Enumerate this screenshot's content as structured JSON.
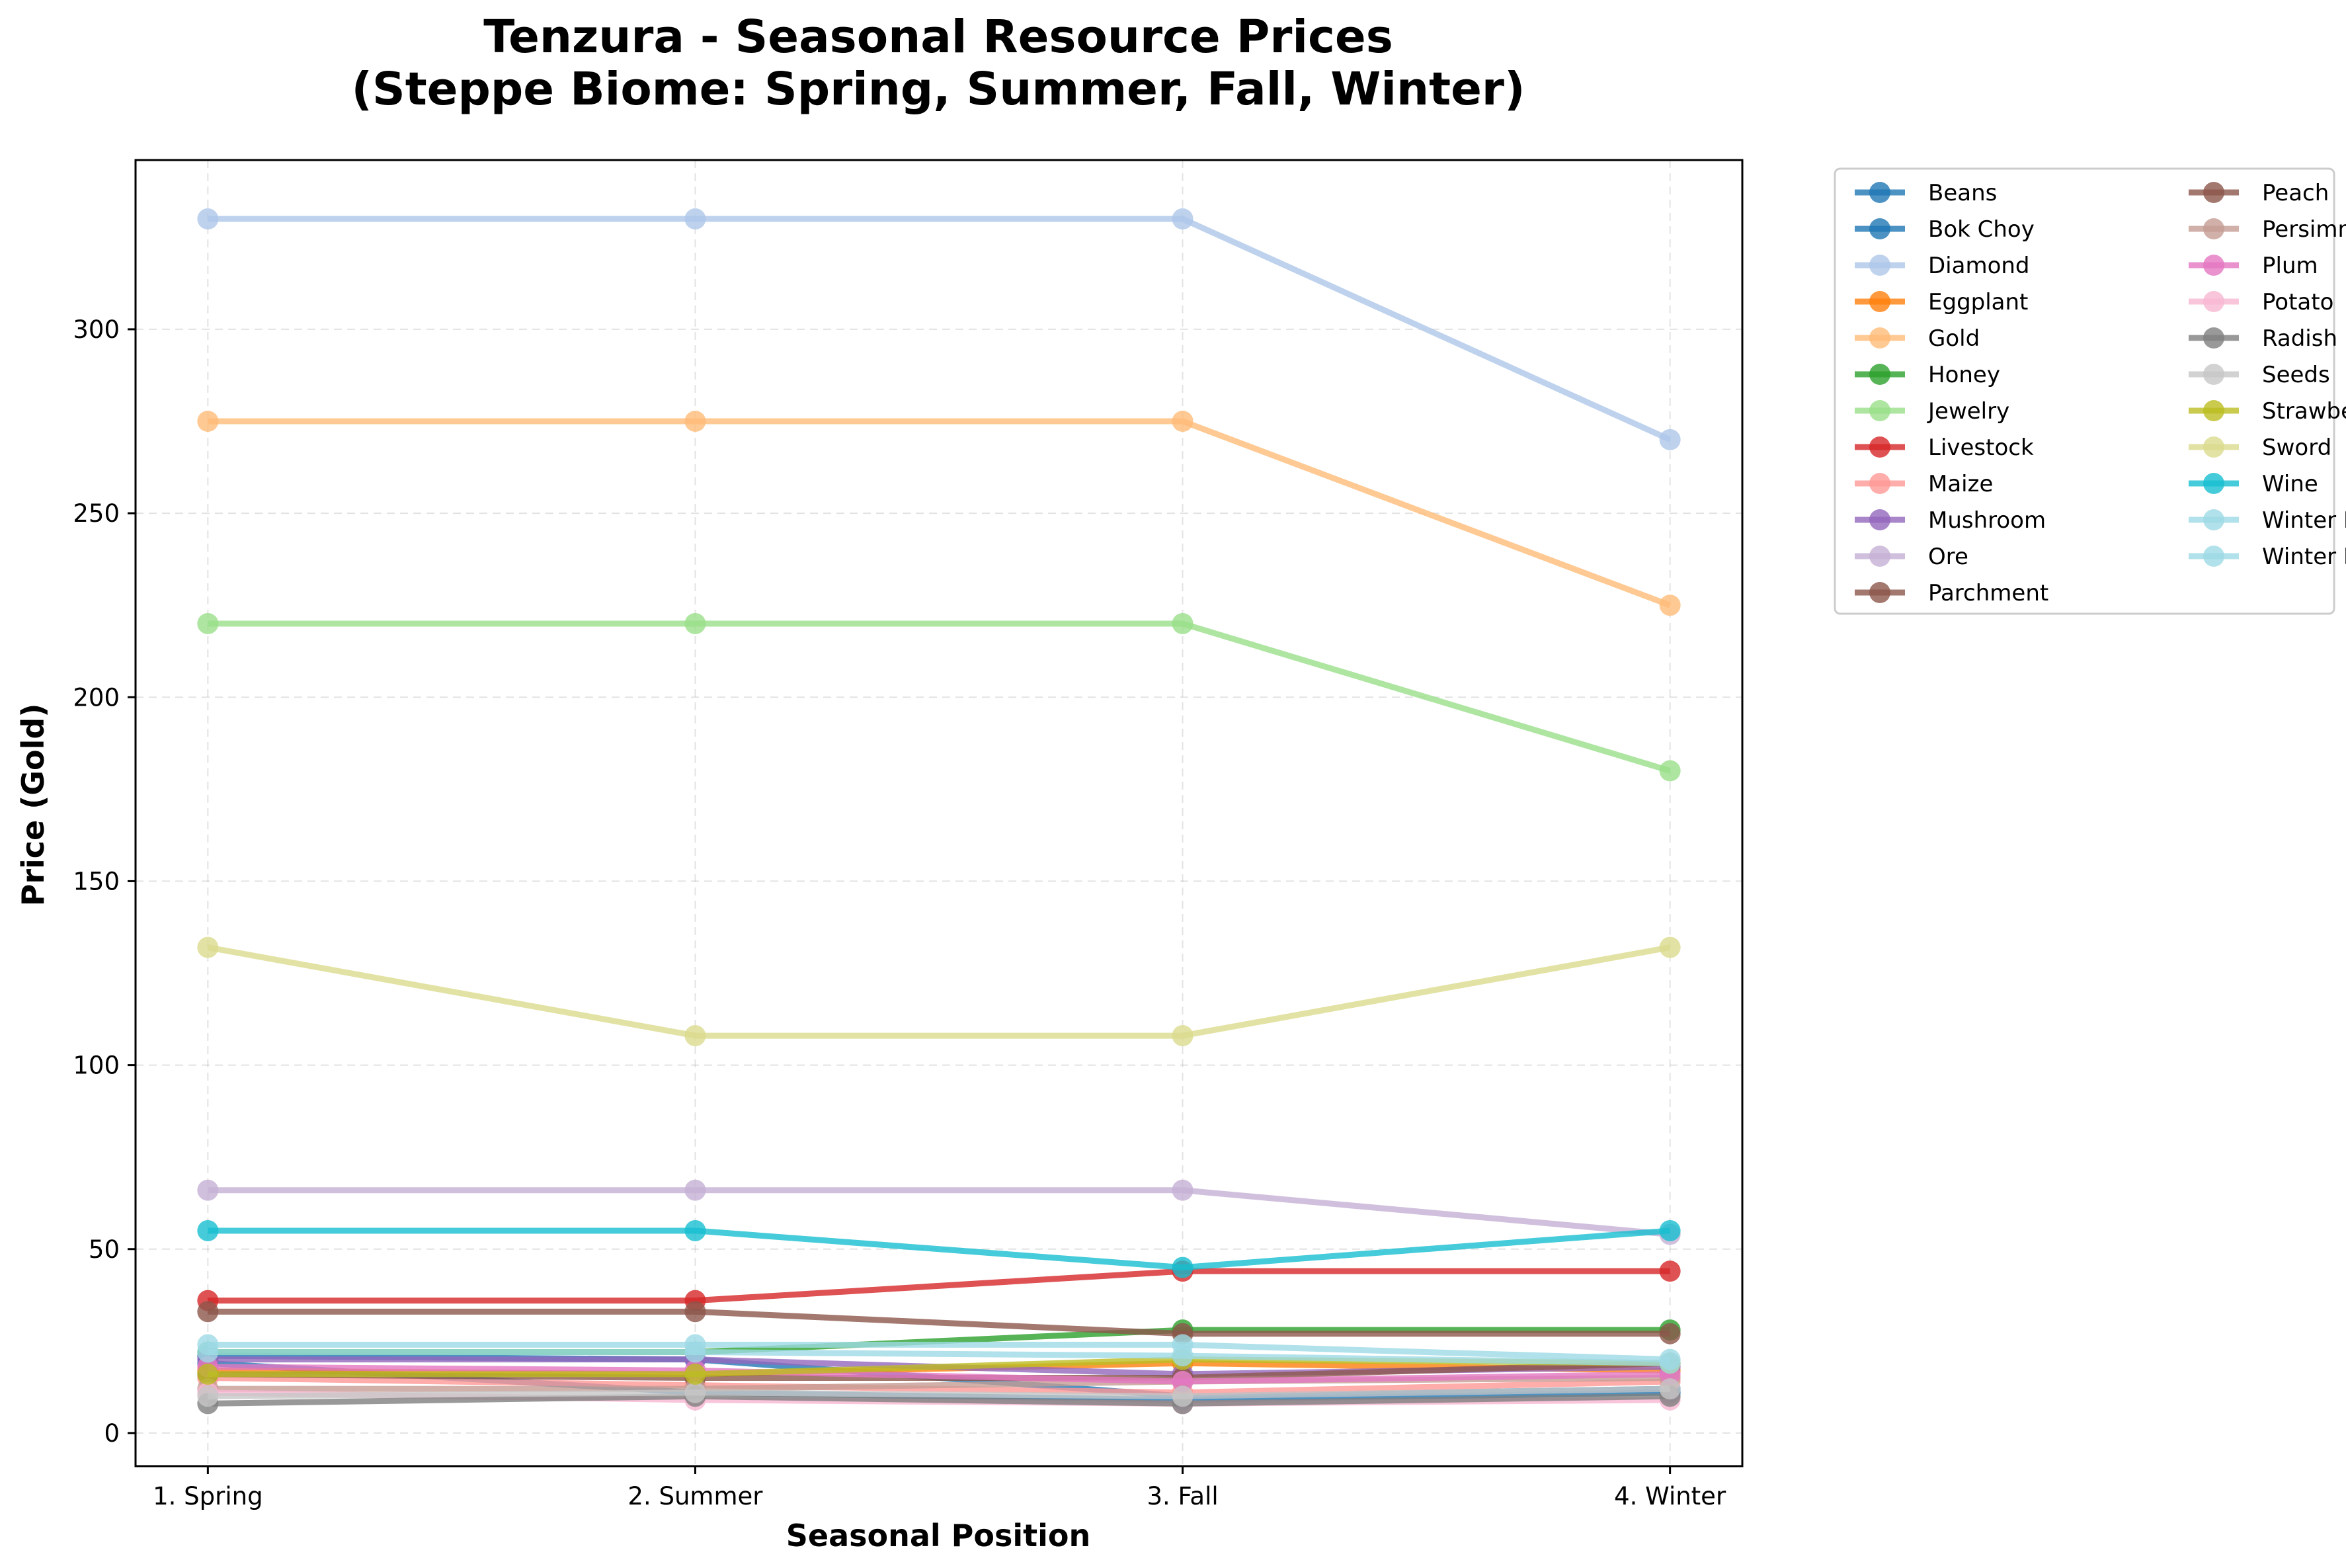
{
  "chart_data": {
    "type": "line",
    "title": "Tenzura - Seasonal Resource Prices",
    "subtitle": "(Steppe Biome: Spring, Summer, Fall, Winter)",
    "xlabel": "Seasonal Position",
    "ylabel": "Price (Gold)",
    "categories": [
      "1. Spring",
      "2. Summer",
      "3. Fall",
      "4. Winter"
    ],
    "ylim": [
      -9,
      346
    ],
    "yticks": [
      0,
      50,
      100,
      150,
      200,
      250,
      300
    ],
    "grid": true,
    "legend_placement": "outside-right",
    "legend_columns": 2,
    "series": [
      {
        "name": "Beans",
        "color": "#1f77b4",
        "values": [
          19,
          11,
          9,
          11
        ]
      },
      {
        "name": "Bok Choy",
        "color": "#1f77b4",
        "values": [
          21,
          20,
          10,
          12
        ]
      },
      {
        "name": "Diamond",
        "color": "#aec7e8",
        "values": [
          330,
          330,
          330,
          270
        ]
      },
      {
        "name": "Eggplant",
        "color": "#ff7f0e",
        "values": [
          17,
          16,
          19,
          17
        ]
      },
      {
        "name": "Gold",
        "color": "#ffbb78",
        "values": [
          275,
          275,
          275,
          225
        ]
      },
      {
        "name": "Honey",
        "color": "#2ca02c",
        "values": [
          22,
          22,
          28,
          28
        ]
      },
      {
        "name": "Jewelry",
        "color": "#98df8a",
        "values": [
          220,
          220,
          220,
          180
        ]
      },
      {
        "name": "Livestock",
        "color": "#d62728",
        "values": [
          36,
          36,
          44,
          44
        ]
      },
      {
        "name": "Maize",
        "color": "#ff9896",
        "values": [
          15,
          13,
          11,
          14
        ]
      },
      {
        "name": "Mushroom",
        "color": "#9467bd",
        "values": [
          20,
          20,
          16,
          18
        ]
      },
      {
        "name": "Ore",
        "color": "#c5b0d5",
        "values": [
          66,
          66,
          66,
          54
        ]
      },
      {
        "name": "Parchment",
        "color": "#8c564b",
        "values": [
          33,
          33,
          27,
          27
        ]
      },
      {
        "name": "Peach",
        "color": "#8c564b",
        "values": [
          16,
          15,
          15,
          19
        ]
      },
      {
        "name": "Persimmon",
        "color": "#c49c94",
        "values": [
          12,
          12,
          14,
          15
        ]
      },
      {
        "name": "Plum",
        "color": "#e377c2",
        "values": [
          18,
          17,
          14,
          16
        ]
      },
      {
        "name": "Potato",
        "color": "#f7b6d2",
        "values": [
          11,
          9,
          8,
          9
        ]
      },
      {
        "name": "Radish",
        "color": "#7f7f7f",
        "values": [
          8,
          10,
          8,
          10
        ]
      },
      {
        "name": "Seeds",
        "color": "#c7c7c7",
        "values": [
          10,
          11,
          10,
          12
        ]
      },
      {
        "name": "Strawberry",
        "color": "#bcbd22",
        "values": [
          16,
          16,
          20,
          19
        ]
      },
      {
        "name": "Sword",
        "color": "#dbdb8d",
        "values": [
          132,
          108,
          108,
          132
        ]
      },
      {
        "name": "Wine",
        "color": "#17becf",
        "values": [
          55,
          55,
          45,
          55
        ]
      },
      {
        "name": "Winter Berry",
        "color": "#9edae5",
        "values": [
          24,
          24,
          24,
          20
        ]
      },
      {
        "name": "Winter Fruit",
        "color": "#9edae5",
        "values": [
          22,
          22,
          21,
          19
        ]
      }
    ]
  }
}
